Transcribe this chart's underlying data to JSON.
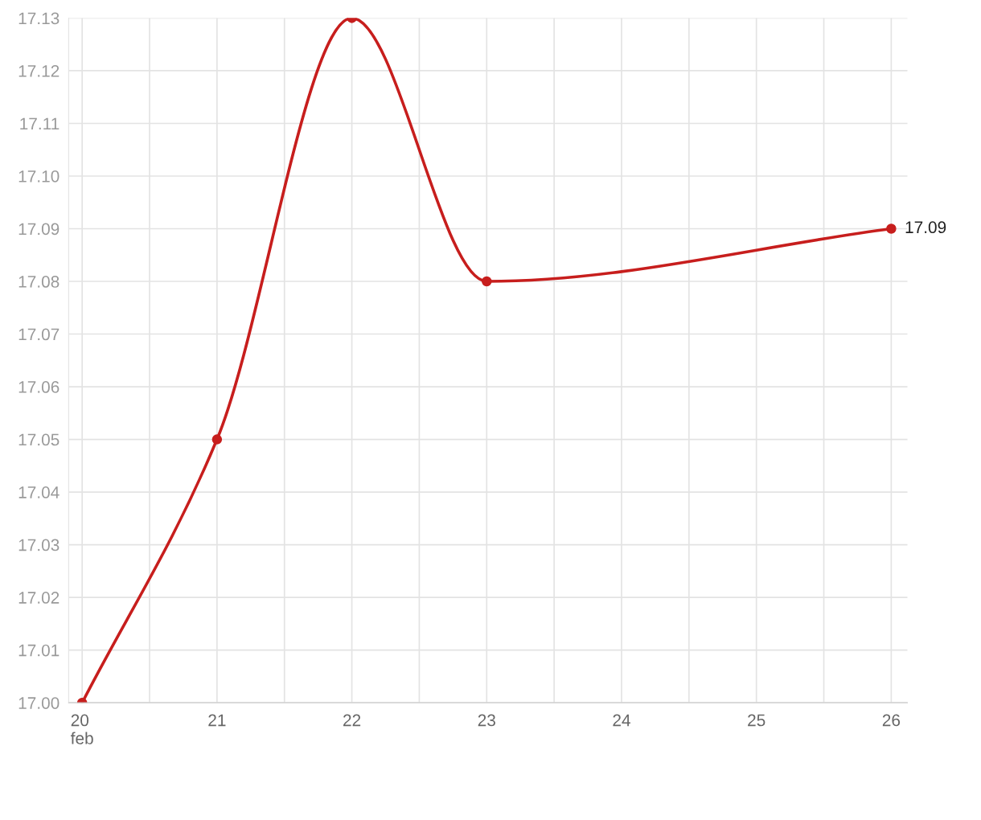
{
  "chart_data": {
    "type": "line",
    "x": [
      20,
      21,
      22,
      23,
      26
    ],
    "series": [
      {
        "color": "#c71e1d",
        "values": [
          17.0,
          17.05,
          17.13,
          17.08,
          17.09
        ],
        "value_labels": [
          null,
          null,
          null,
          null,
          "17.09"
        ]
      }
    ],
    "xlim": [
      19.9,
      26.12
    ],
    "xticks": [
      {
        "value": 20,
        "label": "20\nfeb"
      },
      {
        "value": 20.5,
        "label": null
      },
      21,
      {
        "value": 21.5,
        "label": null
      },
      22,
      {
        "value": 22.5,
        "label": null
      },
      23,
      {
        "value": 23.5,
        "label": null
      },
      24,
      {
        "value": 24.5,
        "label": null
      },
      25,
      {
        "value": 25.5,
        "label": null
      },
      26
    ],
    "ylim": [
      17.0,
      17.13
    ],
    "yticks": [
      {
        "value": 17.0,
        "label": "17.00"
      },
      {
        "value": 17.01,
        "label": "17.01"
      },
      {
        "value": 17.02,
        "label": "17.02"
      },
      {
        "value": 17.03,
        "label": "17.03"
      },
      {
        "value": 17.04,
        "label": "17.04"
      },
      {
        "value": 17.05,
        "label": "17.05"
      },
      {
        "value": 17.06,
        "label": "17.06"
      },
      {
        "value": 17.07,
        "label": "17.07"
      },
      {
        "value": 17.08,
        "label": "17.08"
      },
      {
        "value": 17.09,
        "label": "17.09"
      },
      {
        "value": 17.1,
        "label": "17.10"
      },
      {
        "value": 17.11,
        "label": "17.11"
      },
      {
        "value": 17.12,
        "label": "17.12"
      },
      {
        "value": 17.13,
        "label": "17.13"
      }
    ],
    "grid": true,
    "marker": "circle",
    "line_style": "solid",
    "legend": false
  }
}
